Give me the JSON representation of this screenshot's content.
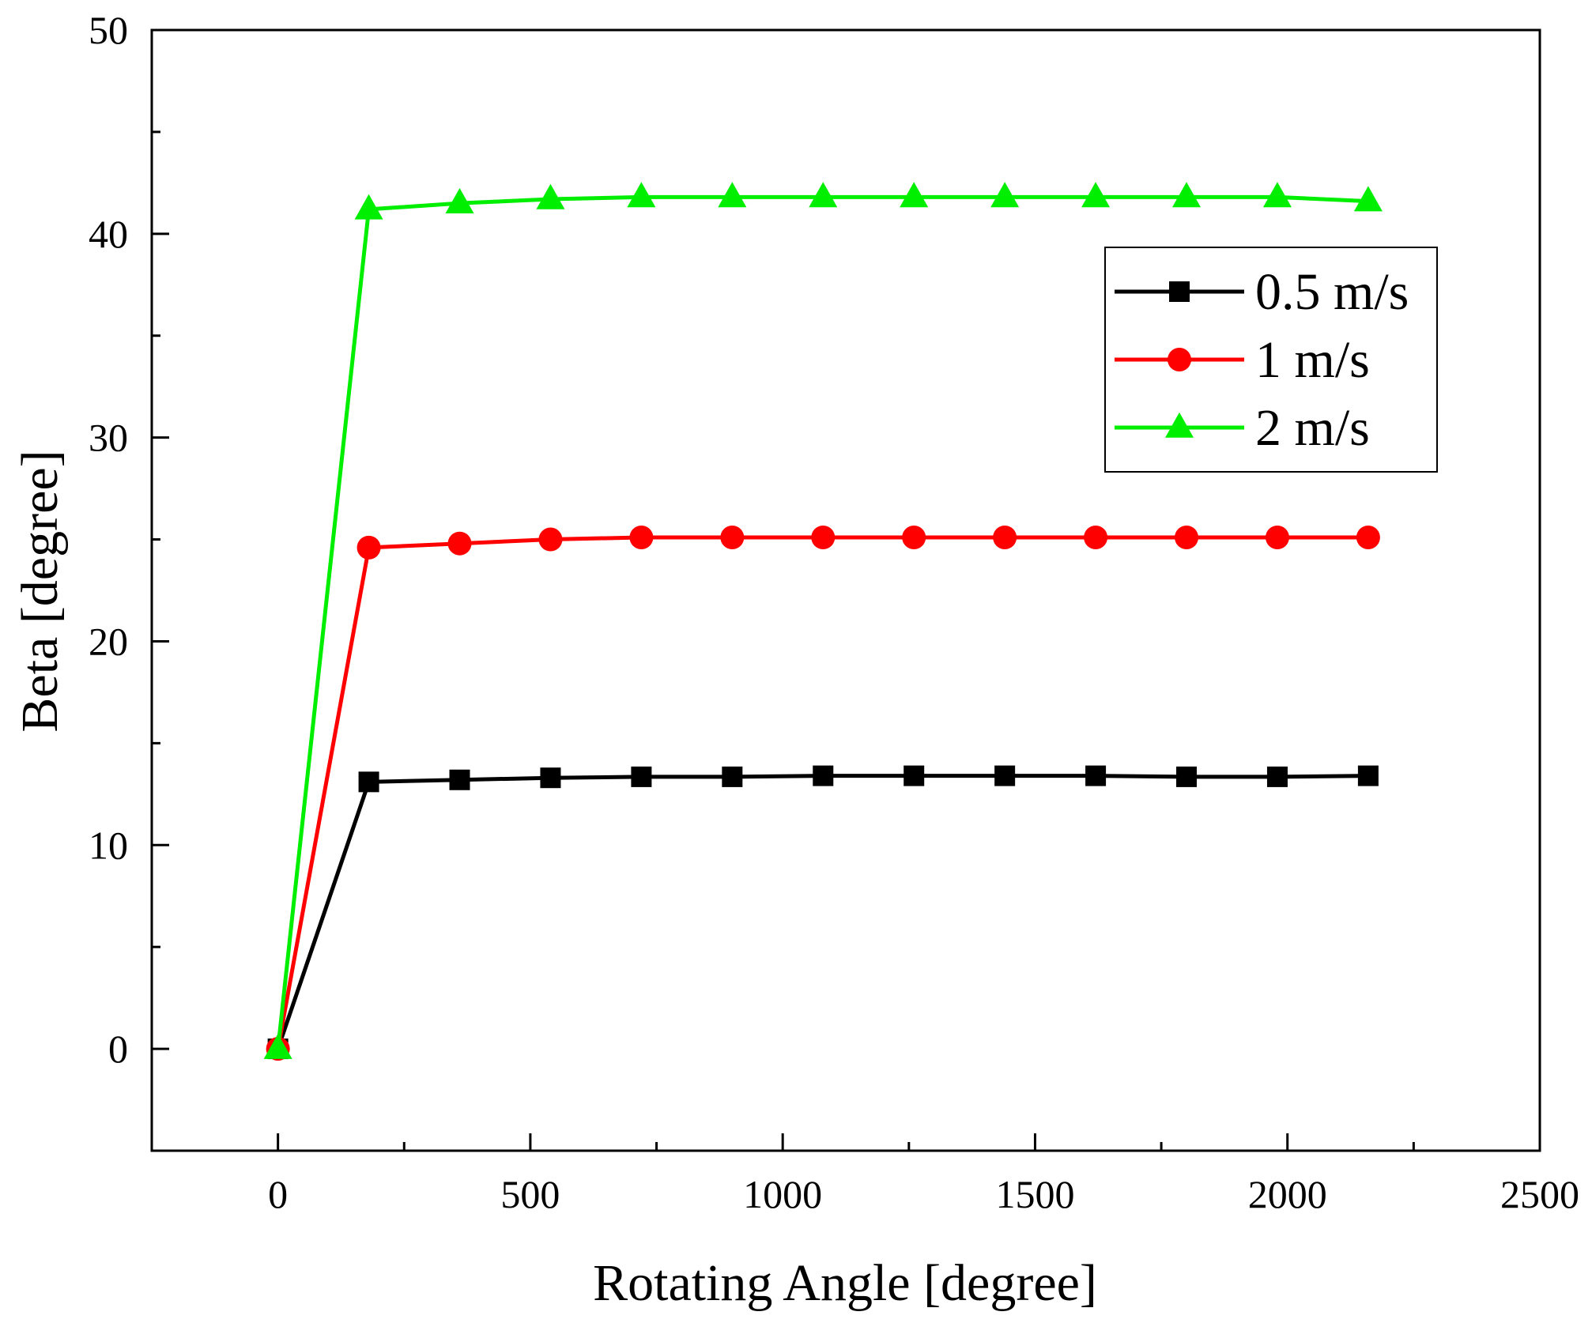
{
  "chart_data": {
    "type": "line",
    "title": "",
    "xlabel": "Rotating Angle [degree]",
    "ylabel": "Beta [degree]",
    "xlim": [
      -250,
      2500
    ],
    "ylim": [
      -5,
      50
    ],
    "x_ticks": [
      0,
      500,
      1000,
      1500,
      2000,
      2500
    ],
    "y_ticks": [
      0,
      10,
      20,
      30,
      40,
      50
    ],
    "x_tick_labels": [
      "0",
      "500",
      "1000",
      "1500",
      "2000",
      "2500"
    ],
    "y_tick_labels": [
      "0",
      "10",
      "20",
      "30",
      "40",
      "50"
    ],
    "grid": false,
    "legend_position": "top-right",
    "x": [
      0,
      180,
      360,
      540,
      720,
      900,
      1080,
      1260,
      1440,
      1620,
      1800,
      1980,
      2160
    ],
    "series": [
      {
        "name": "0.5 m/s",
        "color": "#000000",
        "marker": "square",
        "values": [
          0,
          13.1,
          13.2,
          13.3,
          13.35,
          13.35,
          13.4,
          13.4,
          13.4,
          13.4,
          13.35,
          13.35,
          13.4
        ]
      },
      {
        "name": "1 m/s",
        "color": "#ff0000",
        "marker": "circle",
        "values": [
          0,
          24.6,
          24.8,
          25.0,
          25.1,
          25.1,
          25.1,
          25.1,
          25.1,
          25.1,
          25.1,
          25.1,
          25.1
        ]
      },
      {
        "name": "2 m/s",
        "color": "#00ee00",
        "marker": "triangle",
        "values": [
          0,
          41.2,
          41.5,
          41.7,
          41.8,
          41.8,
          41.8,
          41.8,
          41.8,
          41.8,
          41.8,
          41.8,
          41.6
        ]
      }
    ]
  }
}
